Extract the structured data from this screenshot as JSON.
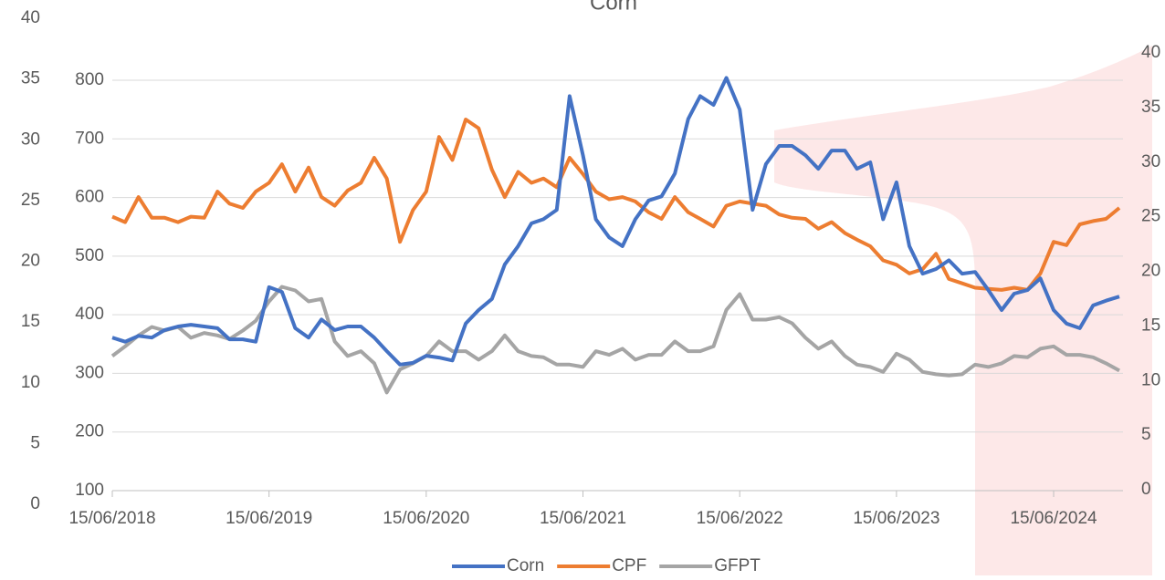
{
  "chart_data": {
    "type": "line",
    "title": "Corn",
    "x": [
      "15/06/2018",
      "15/07/2018",
      "15/08/2018",
      "15/09/2018",
      "15/10/2018",
      "15/11/2018",
      "15/12/2018",
      "15/01/2019",
      "15/02/2019",
      "15/03/2019",
      "15/04/2019",
      "15/05/2019",
      "15/06/2019",
      "15/07/2019",
      "15/08/2019",
      "15/09/2019",
      "15/10/2019",
      "15/11/2019",
      "15/12/2019",
      "15/01/2020",
      "15/02/2020",
      "15/03/2020",
      "15/04/2020",
      "15/05/2020",
      "15/06/2020",
      "15/07/2020",
      "15/08/2020",
      "15/09/2020",
      "15/10/2020",
      "15/11/2020",
      "15/12/2020",
      "15/01/2021",
      "15/02/2021",
      "15/03/2021",
      "15/04/2021",
      "15/05/2021",
      "15/06/2021",
      "15/07/2021",
      "15/08/2021",
      "15/09/2021",
      "15/10/2021",
      "15/11/2021",
      "15/12/2021",
      "15/01/2022",
      "15/02/2022",
      "15/03/2022",
      "15/04/2022",
      "15/05/2022",
      "15/06/2022",
      "15/07/2022",
      "15/08/2022",
      "15/09/2022",
      "15/10/2022",
      "15/11/2022",
      "15/12/2022",
      "15/01/2023",
      "15/02/2023",
      "15/03/2023",
      "15/04/2023",
      "15/05/2023",
      "15/06/2023",
      "15/07/2023",
      "15/08/2023",
      "15/09/2023",
      "15/10/2023",
      "15/11/2023",
      "15/12/2023",
      "15/01/2024",
      "15/02/2024",
      "15/03/2024",
      "15/04/2024",
      "15/05/2024",
      "15/06/2024",
      "15/07/2024",
      "15/08/2024",
      "15/09/2024",
      "15/10/2024",
      "15/11/2024"
    ],
    "xlim": [
      "15/06/2018",
      "15/11/2024"
    ],
    "xticks": [
      "15/06/2018",
      "15/06/2019",
      "15/06/2020",
      "15/06/2021",
      "15/06/2022",
      "15/06/2023",
      "15/06/2024"
    ],
    "ylim": [
      100,
      800
    ],
    "yticks": [
      100,
      200,
      300,
      400,
      500,
      600,
      700,
      800
    ],
    "y2lim": [
      0,
      40
    ],
    "y2ticks": [
      0,
      5,
      10,
      15,
      20,
      25,
      30,
      35,
      40
    ],
    "y3lim": [
      0,
      40
    ],
    "y3ticks": [
      0,
      5,
      10,
      15,
      20,
      25,
      30,
      35,
      40
    ],
    "grid": true,
    "legend": "bottom",
    "series": [
      {
        "name": "Corn",
        "color": "#4472c4",
        "axis": "y",
        "values": [
          361,
          354,
          364,
          361,
          374,
          380,
          383,
          380,
          377,
          358,
          358,
          354,
          447,
          439,
          377,
          361,
          392,
          374,
          380,
          380,
          361,
          338,
          315,
          318,
          330,
          327,
          322,
          385,
          408,
          427,
          486,
          517,
          556,
          563,
          579,
          773,
          672,
          563,
          532,
          517,
          563,
          595,
          602,
          641,
          734,
          773,
          758,
          804,
          750,
          579,
          657,
          688,
          688,
          672,
          649,
          680,
          680,
          649,
          660,
          563,
          626,
          517,
          470,
          478,
          493,
          470,
          473,
          442,
          408,
          436,
          442,
          462,
          408,
          385,
          377,
          416,
          424,
          431
        ]
      },
      {
        "name": "CPF",
        "color": "#ed7d31",
        "axis": "y2",
        "values": [
          25.0,
          24.5,
          26.8,
          24.9,
          24.9,
          24.5,
          25.0,
          24.9,
          27.3,
          26.2,
          25.8,
          27.3,
          28.1,
          29.8,
          27.3,
          29.5,
          26.8,
          26.0,
          27.4,
          28.1,
          30.4,
          28.5,
          22.7,
          25.6,
          27.3,
          32.3,
          30.2,
          33.9,
          33.1,
          29.3,
          26.8,
          29.1,
          28.1,
          28.5,
          27.7,
          30.4,
          28.9,
          27.3,
          26.6,
          26.8,
          26.4,
          25.4,
          24.8,
          26.8,
          25.4,
          24.8,
          24.1,
          26.0,
          26.4,
          26.2,
          26.0,
          25.2,
          24.9,
          24.8,
          23.9,
          24.5,
          23.5,
          22.9,
          22.3,
          21.0,
          20.6,
          19.8,
          20.2,
          21.6,
          19.3,
          18.9,
          18.5,
          18.4,
          18.3,
          18.5,
          18.3,
          19.8,
          22.7,
          22.4,
          24.3,
          24.6,
          24.8,
          25.8
        ]
      },
      {
        "name": "GFPT",
        "color": "#a5a5a5",
        "axis": "y3",
        "values": [
          12.2,
          13.0,
          13.9,
          14.6,
          14.3,
          14.6,
          13.7,
          14.1,
          13.9,
          13.6,
          14.3,
          15.1,
          16.7,
          17.9,
          17.6,
          16.7,
          16.9,
          13.4,
          12.2,
          12.6,
          11.6,
          9.2,
          11.1,
          11.6,
          12.2,
          13.4,
          12.6,
          12.6,
          11.9,
          12.6,
          13.9,
          12.6,
          12.2,
          12.1,
          11.5,
          11.5,
          11.3,
          12.6,
          12.3,
          12.8,
          11.9,
          12.3,
          12.3,
          13.4,
          12.6,
          12.6,
          13.0,
          16.0,
          17.3,
          15.2,
          15.2,
          15.4,
          14.9,
          13.7,
          12.8,
          13.4,
          12.2,
          11.5,
          11.3,
          10.9,
          12.4,
          11.9,
          10.9,
          10.7,
          10.6,
          10.7,
          11.5,
          11.3,
          11.6,
          12.2,
          12.1,
          12.8,
          13.0,
          12.3,
          12.3,
          12.1,
          11.6,
          11.0
        ]
      }
    ]
  }
}
